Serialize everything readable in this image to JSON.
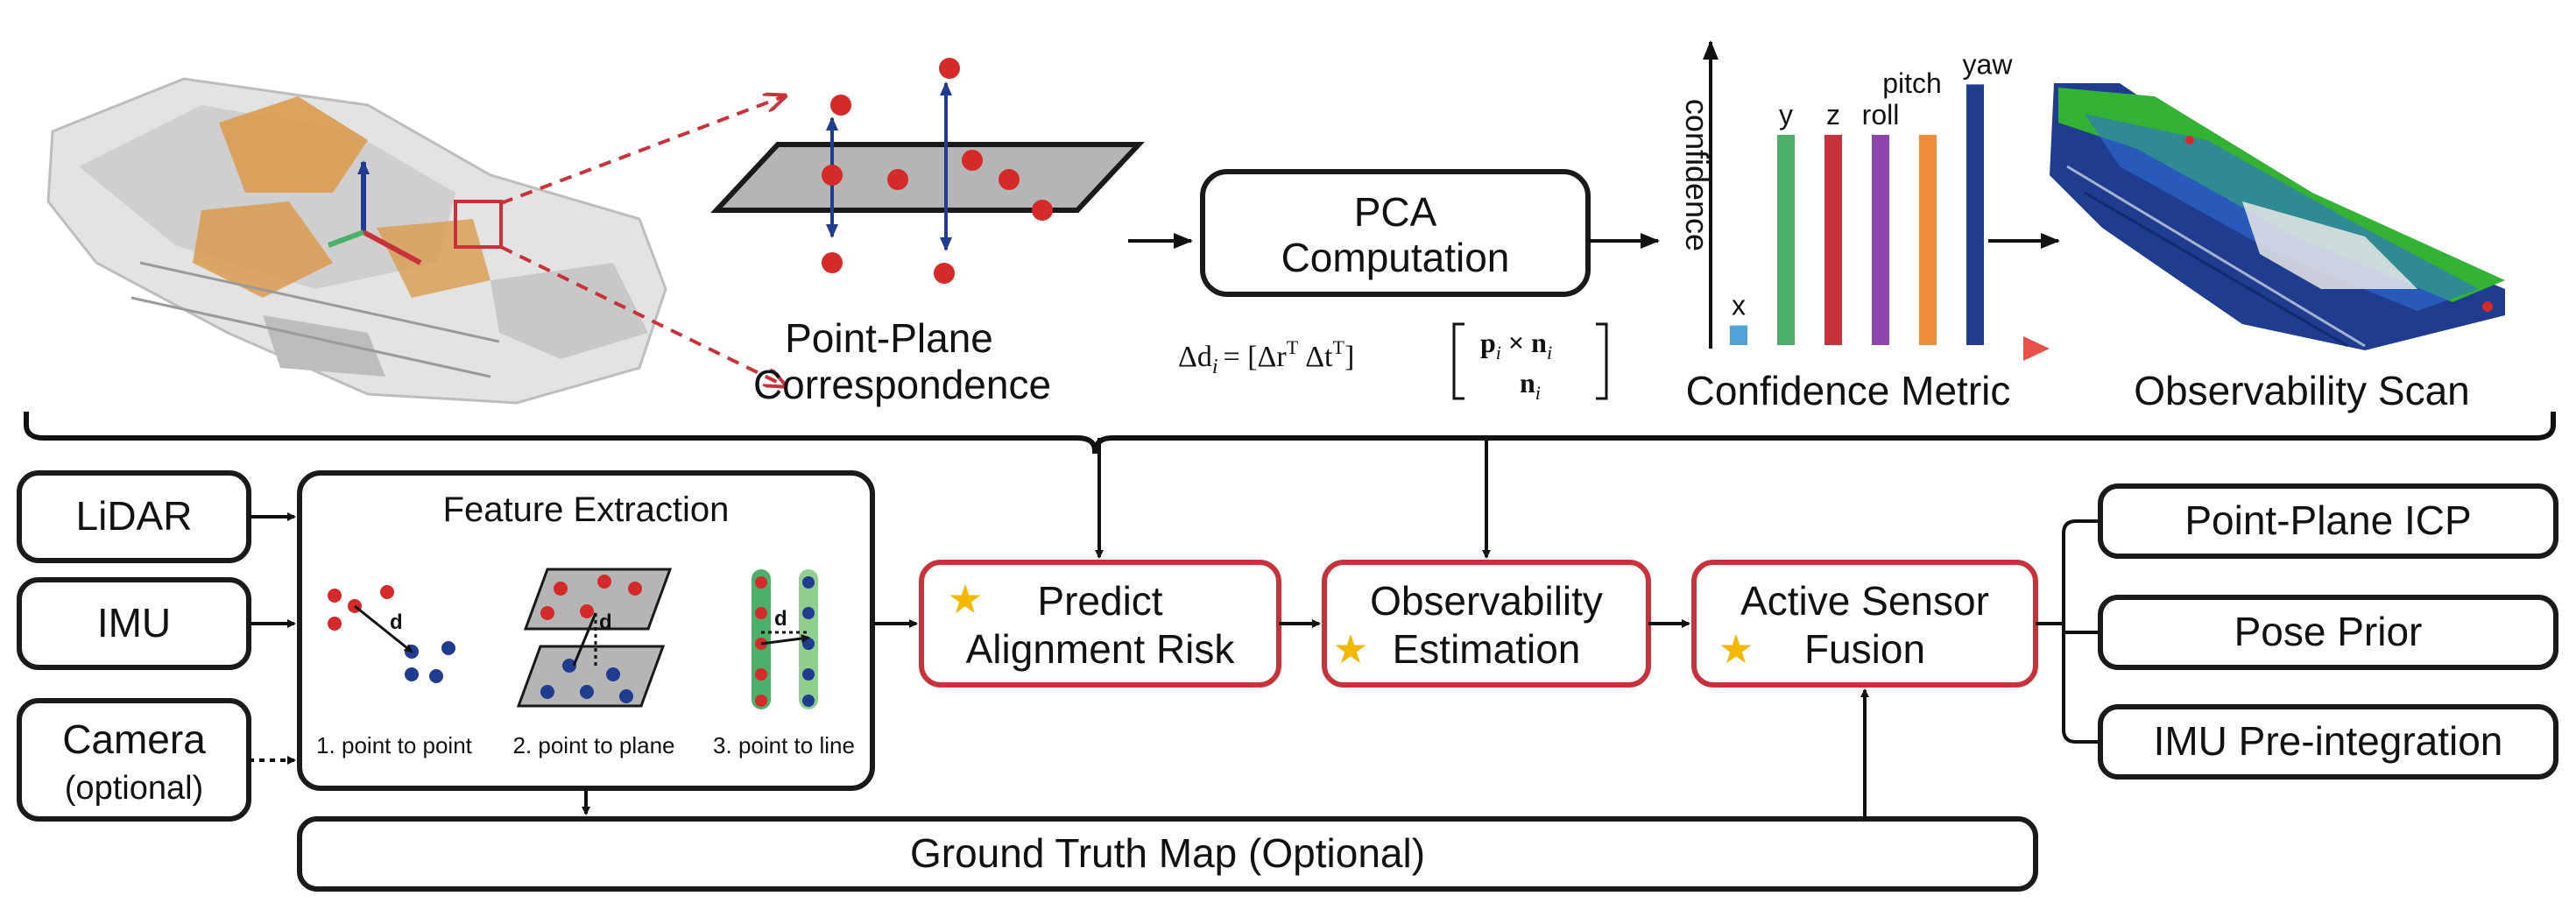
{
  "top": {
    "point_plane_title": [
      "Point-Plane",
      "Correspondence"
    ],
    "pca_label": [
      "PCA",
      "Computation"
    ],
    "formula": {
      "lhs": "Δd",
      "sub": "i",
      "eq": "= [Δr",
      "sup1": "T",
      "mid": "Δt",
      "sup2": "T",
      "close": "]",
      "top_row": "p",
      "top_row_sub": "i",
      "top_row_rest": "× n",
      "top_row_sub2": "i",
      "bottom_row": "n",
      "bottom_row_sub": "i"
    },
    "confidence_axis_label": "confidence",
    "confidence_title": "Confidence Metric",
    "observability_title": "Observability Scan"
  },
  "chart_data": {
    "type": "bar",
    "categories": [
      "x",
      "y",
      "z",
      "roll",
      "pitch",
      "yaw"
    ],
    "values": [
      0.07,
      0.75,
      0.75,
      0.75,
      0.75,
      0.93
    ],
    "colors": [
      "#4fa3d8",
      "#4caf6a",
      "#c8323a",
      "#8e44ad",
      "#ee8c3a",
      "#1f3c8f"
    ],
    "ylabel": "confidence",
    "title": "Confidence Metric",
    "ylim": [
      0,
      1
    ]
  },
  "inputs": {
    "lidar": "LiDAR",
    "imu": "IMU",
    "camera": "Camera",
    "camera_note": "(optional)"
  },
  "feature": {
    "title": "Feature Extraction",
    "d": "d",
    "captions": [
      "1. point to point",
      "2. point to plane",
      "3. point to line"
    ]
  },
  "pipeline": {
    "predict": [
      "Predict",
      "Alignment Risk"
    ],
    "observability": [
      "Observability",
      "Estimation"
    ],
    "fusion": [
      "Active Sensor",
      "Fusion"
    ]
  },
  "outputs": {
    "icp": "Point-Plane ICP",
    "pose": "Pose Prior",
    "imu_pre": "IMU Pre-integration"
  },
  "ground_truth": "Ground Truth Map (Optional)",
  "colors": {
    "red_accent": "#c8323a",
    "star": "#f5b800",
    "blue": "#1f3c8f",
    "green_feature": "#4caf6a",
    "plane_gray": "#b5b5b5"
  }
}
